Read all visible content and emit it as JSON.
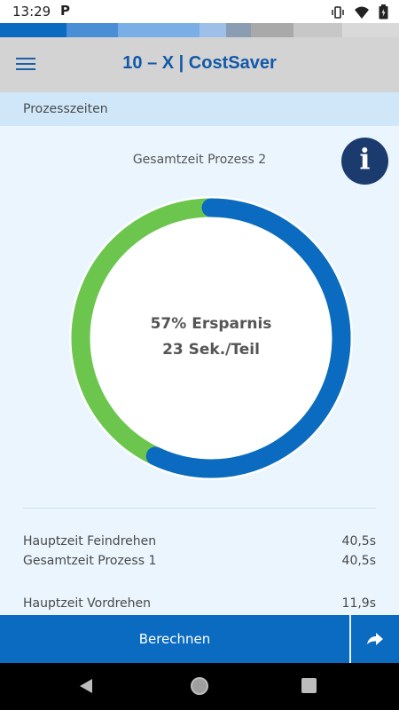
{
  "status_bar": {
    "time": "13:29",
    "notification_icon": "parking-p-icon",
    "system_icons": [
      "vibrate-icon",
      "wifi-icon",
      "battery-icon"
    ]
  },
  "color_strip": [
    "#0a6bc0",
    "#4a8ed6",
    "#7aaee6",
    "#9dbfe8",
    "#8a9db3",
    "#a9a9a9",
    "#c7c7c7",
    "#d9d9d9"
  ],
  "header": {
    "title": "10 – X | CostSaver",
    "menu_icon": "hamburger-menu-icon"
  },
  "section": {
    "title": "Prozesszeiten"
  },
  "gauge": {
    "title": "Gesamtzeit Prozess 2",
    "info_icon": "info-icon",
    "info_glyph": "i",
    "savings_text": "57% Ersparnis",
    "time_text": "23 Sek./Teil",
    "savings_fraction": 0.57,
    "savings_color": "#0a6bc0",
    "remaining_color": "#6cc64e"
  },
  "rows": [
    {
      "label": "Hauptzeit Feindrehen",
      "value": "40,5s"
    },
    {
      "label": "Gesamtzeit Prozess 1",
      "value": "40,5s"
    },
    {
      "label": "Hauptzeit Vordrehen",
      "value": "11,9s"
    }
  ],
  "actions": {
    "calculate_label": "Berechnen",
    "share_icon": "share-arrow-icon"
  },
  "nav": {
    "back_icon": "back-triangle-icon",
    "home_icon": "home-circle-icon",
    "recent_icon": "recent-apps-square-icon"
  }
}
